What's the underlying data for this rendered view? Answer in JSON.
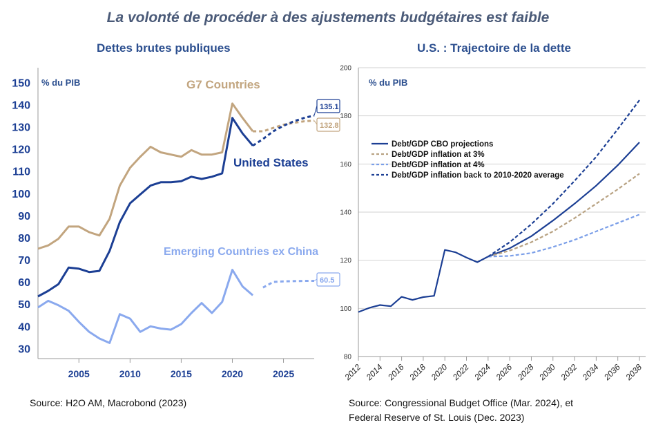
{
  "title": "La volonté de procéder à des ajustements budgétaires est faible",
  "left_source": "Source: H2O AM, Macrobond (2023)",
  "right_source_line1": "Source: Congressional Budget Office (Mar. 2024), et",
  "right_source_line2": "Federal Reserve of St. Louis (Dec. 2023)",
  "colors": {
    "us": "#1c3f94",
    "g7": "#c2a57f",
    "em": "#8aa9ee",
    "axis": "#999999",
    "title": "#2c4f8f"
  },
  "chart_data": [
    {
      "type": "line",
      "title": "Dettes brutes publiques",
      "ylabel": "% du PIB",
      "xlim": [
        2001,
        2028
      ],
      "ylim": [
        27,
        152
      ],
      "yticks": [
        30,
        40,
        50,
        60,
        70,
        80,
        90,
        100,
        110,
        120,
        130,
        140,
        150
      ],
      "xticks": [
        2005,
        2010,
        2015,
        2020,
        2025
      ],
      "grid": false,
      "series": [
        {
          "name": "G7 Countries",
          "color": "#c2a57f",
          "actual": [
            [
              2001,
              75
            ],
            [
              2002,
              76.5
            ],
            [
              2003,
              79.5
            ],
            [
              2004,
              85
            ],
            [
              2005,
              85
            ],
            [
              2006,
              82.5
            ],
            [
              2007,
              81
            ],
            [
              2008,
              88.5
            ],
            [
              2009,
              103.5
            ],
            [
              2010,
              111.5
            ],
            [
              2011,
              116.5
            ],
            [
              2012,
              121
            ],
            [
              2013,
              118.5
            ],
            [
              2014,
              117.5
            ],
            [
              2015,
              116.5
            ],
            [
              2016,
              119.5
            ],
            [
              2017,
              117.5
            ],
            [
              2018,
              117.5
            ],
            [
              2019,
              118.5
            ],
            [
              2020,
              140.5
            ],
            [
              2021,
              134
            ],
            [
              2022,
              128
            ]
          ],
          "projection": [
            [
              2022,
              128
            ],
            [
              2023,
              128
            ],
            [
              2024,
              129.5
            ],
            [
              2025,
              131
            ],
            [
              2026,
              131.8
            ],
            [
              2027,
              132.5
            ],
            [
              2028,
              132.8
            ]
          ],
          "end_label": "132.8"
        },
        {
          "name": "United States",
          "color": "#1c3f94",
          "actual": [
            [
              2001,
              53.5
            ],
            [
              2002,
              56
            ],
            [
              2003,
              59
            ],
            [
              2004,
              66.5
            ],
            [
              2005,
              66
            ],
            [
              2006,
              64.5
            ],
            [
              2007,
              65
            ],
            [
              2008,
              74
            ],
            [
              2009,
              87
            ],
            [
              2010,
              95.5
            ],
            [
              2011,
              99.5
            ],
            [
              2012,
              103.5
            ],
            [
              2013,
              105
            ],
            [
              2014,
              105
            ],
            [
              2015,
              105.5
            ],
            [
              2016,
              107.5
            ],
            [
              2017,
              106.5
            ],
            [
              2018,
              107.5
            ],
            [
              2019,
              109
            ],
            [
              2020,
              134
            ],
            [
              2021,
              127
            ],
            [
              2022,
              121.5
            ]
          ],
          "projection": [
            [
              2022,
              121.5
            ],
            [
              2023,
              124.5
            ],
            [
              2024,
              128
            ],
            [
              2025,
              130.5
            ],
            [
              2026,
              132.5
            ],
            [
              2027,
              134
            ],
            [
              2028,
              135.1
            ]
          ],
          "end_label": "135.1"
        },
        {
          "name": "Emerging Countries ex China",
          "color": "#8aa9ee",
          "actual": [
            [
              2001,
              48.5
            ],
            [
              2002,
              51.5
            ],
            [
              2003,
              49.5
            ],
            [
              2004,
              47
            ],
            [
              2005,
              42
            ],
            [
              2006,
              37.5
            ],
            [
              2007,
              34.5
            ],
            [
              2008,
              32.5
            ],
            [
              2009,
              45.5
            ],
            [
              2010,
              43.5
            ],
            [
              2011,
              37.5
            ],
            [
              2012,
              40
            ],
            [
              2013,
              39
            ],
            [
              2014,
              38.5
            ],
            [
              2015,
              41
            ],
            [
              2016,
              46
            ],
            [
              2017,
              50.5
            ],
            [
              2018,
              46
            ],
            [
              2019,
              51
            ],
            [
              2020,
              65.5
            ],
            [
              2021,
              58
            ],
            [
              2022,
              54
            ]
          ],
          "projection": [
            [
              2023,
              57.5
            ],
            [
              2024,
              60
            ],
            [
              2025,
              60.3
            ],
            [
              2026,
              60.4
            ],
            [
              2027,
              60.5
            ],
            [
              2028,
              60.5
            ]
          ],
          "end_label": "60.5"
        }
      ]
    },
    {
      "type": "line",
      "title": "U.S. : Trajectoire de la dette",
      "ylabel": "% du PIB",
      "xlim": [
        2012,
        2038
      ],
      "ylim": [
        80,
        200
      ],
      "yticks": [
        80,
        100,
        120,
        140,
        160,
        180,
        200
      ],
      "xticks": [
        2012,
        2014,
        2016,
        2018,
        2020,
        2022,
        2024,
        2026,
        2028,
        2030,
        2032,
        2034,
        2036,
        2038
      ],
      "grid": "horizontal",
      "legend": "top-left",
      "history": {
        "color": "#1c3f94",
        "points": [
          [
            2012,
            98.5
          ],
          [
            2013,
            100.2
          ],
          [
            2014,
            101.4
          ],
          [
            2015,
            100.9
          ],
          [
            2016,
            104.8
          ],
          [
            2017,
            103.5
          ],
          [
            2018,
            104.7
          ],
          [
            2019,
            105.2
          ],
          [
            2020,
            124.3
          ],
          [
            2021,
            123.3
          ],
          [
            2022,
            121.1
          ],
          [
            2023,
            119.2
          ],
          [
            2024,
            121.5
          ]
        ]
      },
      "series": [
        {
          "name": "Debt/GDP CBO projections",
          "color": "#1c3f94",
          "dash": false,
          "values": [
            [
              2024,
              121.5
            ],
            [
              2026,
              125
            ],
            [
              2028,
              130
            ],
            [
              2030,
              136.5
            ],
            [
              2032,
              143.5
            ],
            [
              2034,
              151
            ],
            [
              2036,
              159.5
            ],
            [
              2038,
              169
            ]
          ]
        },
        {
          "name": "Debt/GDP inflation at 3%",
          "color": "#b8a282",
          "dash": true,
          "values": [
            [
              2024,
              121.5
            ],
            [
              2026,
              124
            ],
            [
              2028,
              127.5
            ],
            [
              2030,
              132
            ],
            [
              2032,
              137.5
            ],
            [
              2034,
              143.5
            ],
            [
              2036,
              149.5
            ],
            [
              2038,
              156
            ]
          ]
        },
        {
          "name": "Debt/GDP inflation at 4%",
          "color": "#7a9ee8",
          "dash": true,
          "values": [
            [
              2024,
              121.5
            ],
            [
              2026,
              121.8
            ],
            [
              2028,
              123
            ],
            [
              2030,
              125.5
            ],
            [
              2032,
              128.5
            ],
            [
              2034,
              132
            ],
            [
              2036,
              135.5
            ],
            [
              2038,
              139
            ]
          ]
        },
        {
          "name": "Debt/GDP inflation back to 2010-2020 average",
          "color": "#1c3f94",
          "dash": true,
          "values": [
            [
              2024,
              121.5
            ],
            [
              2026,
              127.5
            ],
            [
              2028,
              135
            ],
            [
              2030,
              143.5
            ],
            [
              2032,
              153
            ],
            [
              2034,
              163
            ],
            [
              2036,
              174.5
            ],
            [
              2038,
              186.5
            ]
          ]
        }
      ]
    }
  ]
}
